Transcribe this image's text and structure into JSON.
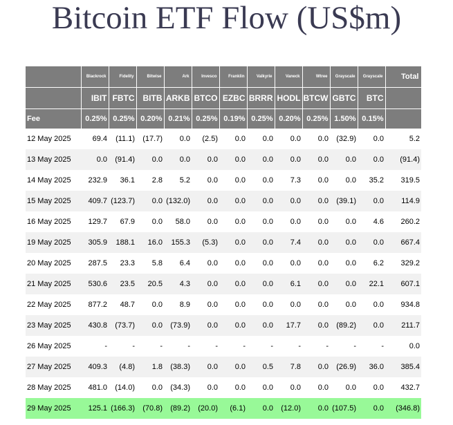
{
  "title": "Bitcoin ETF Flow (US$m)",
  "table": {
    "total_label": "Total",
    "fee_label": "Fee",
    "issuers": [
      "Blackrock",
      "Fidelity",
      "Bitwise",
      "Ark",
      "Invesco",
      "Franklin",
      "Valkyrie",
      "Vaneck",
      "Wtree",
      "Grayscale",
      "Grayscale"
    ],
    "tickers": [
      "IBIT",
      "FBTC",
      "BITB",
      "ARKB",
      "BTCO",
      "EZBC",
      "BRRR",
      "HODL",
      "BTCW",
      "GBTC",
      "BTC"
    ],
    "fees": [
      "0.25%",
      "0.25%",
      "0.20%",
      "0.21%",
      "0.25%",
      "0.19%",
      "0.25%",
      "0.20%",
      "0.25%",
      "1.50%",
      "0.15%"
    ],
    "rows": [
      {
        "date": "12 May 2025",
        "values": [
          "69.4",
          "(11.1)",
          "(17.7)",
          "0.0",
          "(2.5)",
          "0.0",
          "0.0",
          "0.0",
          "0.0",
          "(32.9)",
          "0.0"
        ],
        "total": "5.2"
      },
      {
        "date": "13 May 2025",
        "values": [
          "0.0",
          "(91.4)",
          "0.0",
          "0.0",
          "0.0",
          "0.0",
          "0.0",
          "0.0",
          "0.0",
          "0.0",
          "0.0"
        ],
        "total": "(91.4)"
      },
      {
        "date": "14 May 2025",
        "values": [
          "232.9",
          "36.1",
          "2.8",
          "5.2",
          "0.0",
          "0.0",
          "0.0",
          "7.3",
          "0.0",
          "0.0",
          "35.2"
        ],
        "total": "319.5"
      },
      {
        "date": "15 May 2025",
        "values": [
          "409.7",
          "(123.7)",
          "0.0",
          "(132.0)",
          "0.0",
          "0.0",
          "0.0",
          "0.0",
          "0.0",
          "(39.1)",
          "0.0"
        ],
        "total": "114.9"
      },
      {
        "date": "16 May 2025",
        "values": [
          "129.7",
          "67.9",
          "0.0",
          "58.0",
          "0.0",
          "0.0",
          "0.0",
          "0.0",
          "0.0",
          "0.0",
          "4.6"
        ],
        "total": "260.2"
      },
      {
        "date": "19 May 2025",
        "values": [
          "305.9",
          "188.1",
          "16.0",
          "155.3",
          "(5.3)",
          "0.0",
          "0.0",
          "7.4",
          "0.0",
          "0.0",
          "0.0"
        ],
        "total": "667.4"
      },
      {
        "date": "20 May 2025",
        "values": [
          "287.5",
          "23.3",
          "5.8",
          "6.4",
          "0.0",
          "0.0",
          "0.0",
          "0.0",
          "0.0",
          "0.0",
          "6.2"
        ],
        "total": "329.2"
      },
      {
        "date": "21 May 2025",
        "values": [
          "530.6",
          "23.5",
          "20.5",
          "4.3",
          "0.0",
          "0.0",
          "0.0",
          "6.1",
          "0.0",
          "0.0",
          "22.1"
        ],
        "total": "607.1"
      },
      {
        "date": "22 May 2025",
        "values": [
          "877.2",
          "48.7",
          "0.0",
          "8.9",
          "0.0",
          "0.0",
          "0.0",
          "0.0",
          "0.0",
          "0.0",
          "0.0"
        ],
        "total": "934.8"
      },
      {
        "date": "23 May 2025",
        "values": [
          "430.8",
          "(73.7)",
          "0.0",
          "(73.9)",
          "0.0",
          "0.0",
          "0.0",
          "17.7",
          "0.0",
          "(89.2)",
          "0.0"
        ],
        "total": "211.7"
      },
      {
        "date": "26 May 2025",
        "values": [
          "-",
          "-",
          "-",
          "-",
          "-",
          "-",
          "-",
          "-",
          "-",
          "-",
          "-"
        ],
        "total": "0.0"
      },
      {
        "date": "27 May 2025",
        "values": [
          "409.3",
          "(4.8)",
          "1.8",
          "(38.3)",
          "0.0",
          "0.0",
          "0.5",
          "7.8",
          "0.0",
          "(26.9)",
          "36.0"
        ],
        "total": "385.4"
      },
      {
        "date": "28 May 2025",
        "values": [
          "481.0",
          "(14.0)",
          "0.0",
          "(34.3)",
          "0.0",
          "0.0",
          "0.0",
          "0.0",
          "0.0",
          "0.0",
          "0.0"
        ],
        "total": "432.7"
      },
      {
        "date": "29 May 2025",
        "values": [
          "125.1",
          "(166.3)",
          "(70.8)",
          "(89.2)",
          "(20.0)",
          "(6.1)",
          "0.0",
          "(12.0)",
          "0.0",
          "(107.5)",
          "0.0"
        ],
        "total": "(346.8)",
        "highlight": true
      }
    ]
  },
  "colors": {
    "header_bg": "#7d7d7d",
    "negative": "#dd0000",
    "highlight_row": "#98f998",
    "row_stripe": "#f1f1f1",
    "title": "#3a3a52"
  }
}
